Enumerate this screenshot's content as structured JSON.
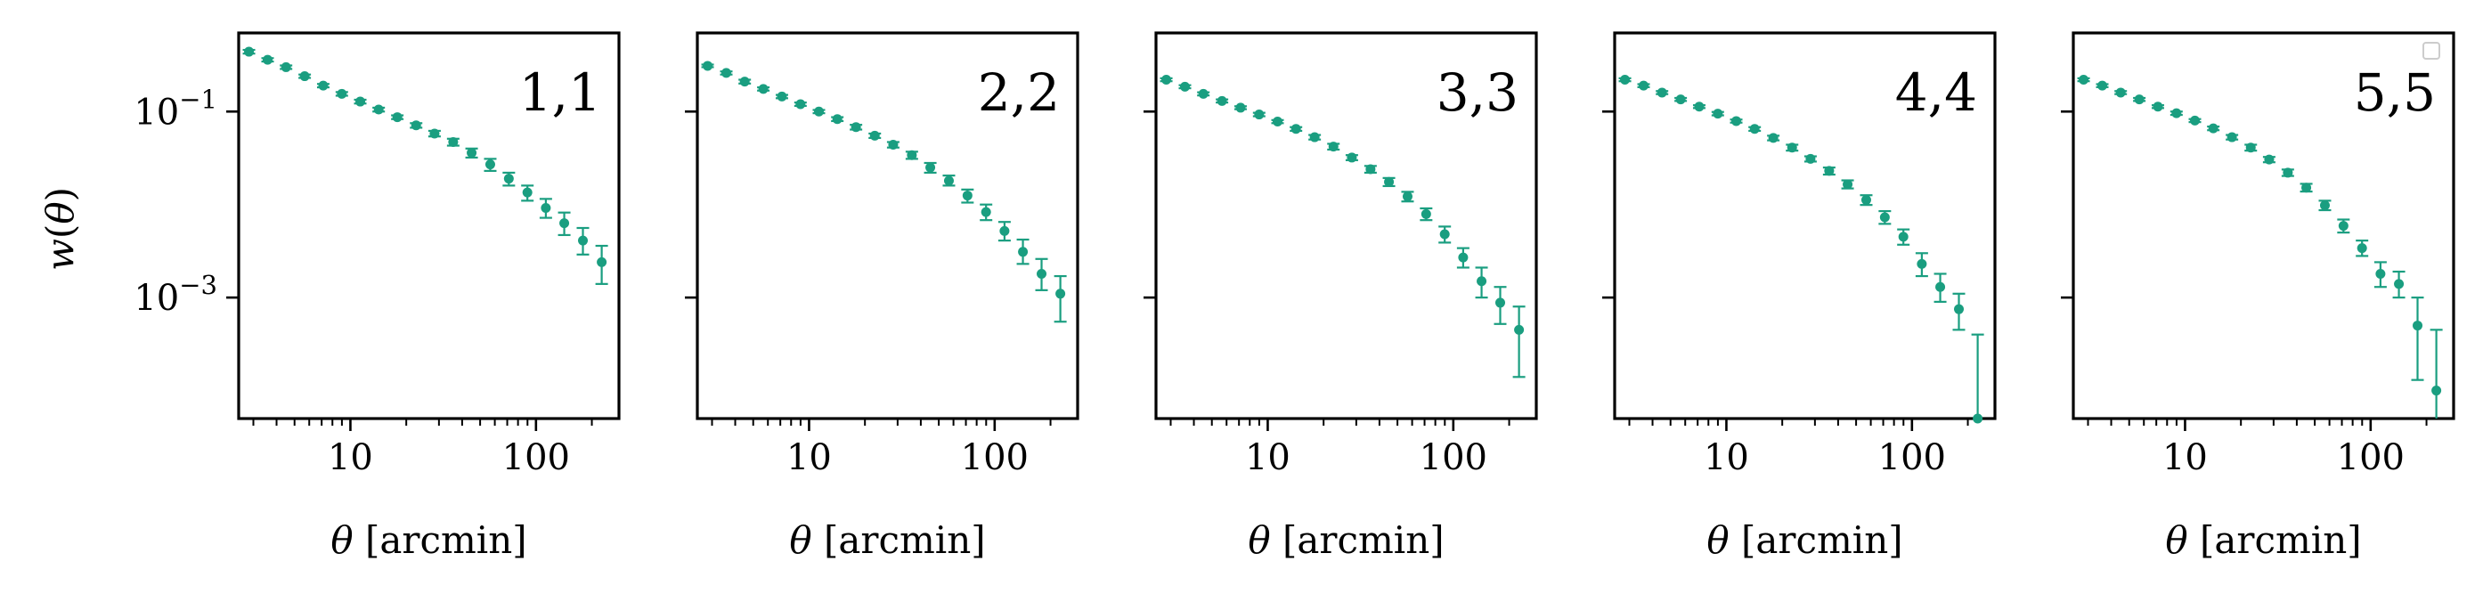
{
  "figure": {
    "ylabel": "w(θ)",
    "xlabel": "θ [arcmin]",
    "series_color": "#1a9e80"
  },
  "chart_data": [
    {
      "type": "scatter",
      "panel_label": "1,1",
      "xlabel": "θ [arcmin]",
      "ylabel": "w(θ)",
      "xscale": "log",
      "yscale": "log",
      "xlim": [
        2.5,
        280
      ],
      "ylim": [
        5e-05,
        0.7
      ],
      "xticks": [
        10,
        100
      ],
      "xticklabels": [
        "10",
        "100"
      ],
      "yticks": [
        0.1,
        0.001
      ],
      "yticklabels": [
        "10^−1",
        "10^−3"
      ],
      "points": [
        {
          "x": 2.84,
          "y": 0.44,
          "err": [
            0.42,
            0.46
          ]
        },
        {
          "x": 3.58,
          "y": 0.36,
          "err": [
            0.345,
            0.375
          ]
        },
        {
          "x": 4.5,
          "y": 0.3,
          "err": [
            0.287,
            0.313
          ]
        },
        {
          "x": 5.67,
          "y": 0.24,
          "err": [
            0.23,
            0.25
          ]
        },
        {
          "x": 7.14,
          "y": 0.19,
          "err": [
            0.182,
            0.198
          ]
        },
        {
          "x": 8.99,
          "y": 0.155,
          "err": [
            0.148,
            0.162
          ]
        },
        {
          "x": 11.3,
          "y": 0.128,
          "err": [
            0.122,
            0.134
          ]
        },
        {
          "x": 14.2,
          "y": 0.105,
          "err": [
            0.1,
            0.11
          ]
        },
        {
          "x": 17.9,
          "y": 0.087,
          "err": [
            0.083,
            0.091
          ]
        },
        {
          "x": 22.6,
          "y": 0.071,
          "err": [
            0.067,
            0.075
          ]
        },
        {
          "x": 28.4,
          "y": 0.058,
          "err": [
            0.054,
            0.062
          ]
        },
        {
          "x": 35.8,
          "y": 0.047,
          "err": [
            0.043,
            0.051
          ]
        },
        {
          "x": 45.0,
          "y": 0.036,
          "err": [
            0.032,
            0.04
          ]
        },
        {
          "x": 56.7,
          "y": 0.027,
          "err": [
            0.023,
            0.031
          ]
        },
        {
          "x": 71.4,
          "y": 0.019,
          "err": [
            0.016,
            0.022
          ]
        },
        {
          "x": 89.9,
          "y": 0.0135,
          "err": [
            0.011,
            0.016
          ]
        },
        {
          "x": 113.0,
          "y": 0.0092,
          "err": [
            0.0072,
            0.0115
          ]
        },
        {
          "x": 142.0,
          "y": 0.0063,
          "err": [
            0.0047,
            0.0082
          ]
        },
        {
          "x": 179.0,
          "y": 0.0041,
          "err": [
            0.0029,
            0.0056
          ]
        },
        {
          "x": 226.0,
          "y": 0.0024,
          "err": [
            0.0014,
            0.0036
          ]
        }
      ]
    },
    {
      "type": "scatter",
      "panel_label": "2,2",
      "xlabel": "θ [arcmin]",
      "xscale": "log",
      "yscale": "log",
      "xlim": [
        2.5,
        280
      ],
      "ylim": [
        5e-05,
        0.7
      ],
      "xticks": [
        10,
        100
      ],
      "xticklabels": [
        "10",
        "100"
      ],
      "points": [
        {
          "x": 2.84,
          "y": 0.31,
          "err": [
            0.3,
            0.32
          ]
        },
        {
          "x": 3.58,
          "y": 0.26,
          "err": [
            0.25,
            0.27
          ]
        },
        {
          "x": 4.5,
          "y": 0.21,
          "err": [
            0.2,
            0.22
          ]
        },
        {
          "x": 5.67,
          "y": 0.175,
          "err": [
            0.168,
            0.182
          ]
        },
        {
          "x": 7.14,
          "y": 0.145,
          "err": [
            0.139,
            0.151
          ]
        },
        {
          "x": 8.99,
          "y": 0.12,
          "err": [
            0.115,
            0.125
          ]
        },
        {
          "x": 11.3,
          "y": 0.1,
          "err": [
            0.096,
            0.104
          ]
        },
        {
          "x": 14.2,
          "y": 0.083,
          "err": [
            0.079,
            0.087
          ]
        },
        {
          "x": 17.9,
          "y": 0.068,
          "err": [
            0.064,
            0.072
          ]
        },
        {
          "x": 22.6,
          "y": 0.055,
          "err": [
            0.052,
            0.058
          ]
        },
        {
          "x": 28.4,
          "y": 0.044,
          "err": [
            0.041,
            0.047
          ]
        },
        {
          "x": 35.8,
          "y": 0.034,
          "err": [
            0.031,
            0.037
          ]
        },
        {
          "x": 45.0,
          "y": 0.025,
          "err": [
            0.022,
            0.028
          ]
        },
        {
          "x": 56.7,
          "y": 0.018,
          "err": [
            0.016,
            0.0205
          ]
        },
        {
          "x": 71.4,
          "y": 0.0125,
          "err": [
            0.0105,
            0.0145
          ]
        },
        {
          "x": 89.9,
          "y": 0.0083,
          "err": [
            0.0068,
            0.01
          ]
        },
        {
          "x": 113.0,
          "y": 0.0052,
          "err": [
            0.0041,
            0.0065
          ]
        },
        {
          "x": 142.0,
          "y": 0.0031,
          "err": [
            0.0023,
            0.0042
          ]
        },
        {
          "x": 179.0,
          "y": 0.0018,
          "err": [
            0.0012,
            0.0026
          ]
        },
        {
          "x": 226.0,
          "y": 0.0011,
          "err": [
            0.00055,
            0.0017
          ]
        }
      ]
    },
    {
      "type": "scatter",
      "panel_label": "3,3",
      "xlabel": "θ [arcmin]",
      "xscale": "log",
      "yscale": "log",
      "xlim": [
        2.5,
        280
      ],
      "ylim": [
        5e-05,
        0.7
      ],
      "xticks": [
        10,
        100
      ],
      "xticklabels": [
        "10",
        "100"
      ],
      "points": [
        {
          "x": 2.84,
          "y": 0.22,
          "err": [
            0.212,
            0.228
          ]
        },
        {
          "x": 3.58,
          "y": 0.185,
          "err": [
            0.178,
            0.192
          ]
        },
        {
          "x": 4.5,
          "y": 0.155,
          "err": [
            0.149,
            0.161
          ]
        },
        {
          "x": 5.67,
          "y": 0.13,
          "err": [
            0.125,
            0.135
          ]
        },
        {
          "x": 7.14,
          "y": 0.11,
          "err": [
            0.106,
            0.114
          ]
        },
        {
          "x": 8.99,
          "y": 0.093,
          "err": [
            0.089,
            0.097
          ]
        },
        {
          "x": 11.3,
          "y": 0.078,
          "err": [
            0.075,
            0.081
          ]
        },
        {
          "x": 14.2,
          "y": 0.065,
          "err": [
            0.062,
            0.068
          ]
        },
        {
          "x": 17.9,
          "y": 0.053,
          "err": [
            0.05,
            0.056
          ]
        },
        {
          "x": 22.6,
          "y": 0.042,
          "err": [
            0.039,
            0.045
          ]
        },
        {
          "x": 28.4,
          "y": 0.032,
          "err": [
            0.03,
            0.034
          ]
        },
        {
          "x": 35.8,
          "y": 0.024,
          "err": [
            0.022,
            0.026
          ]
        },
        {
          "x": 45.0,
          "y": 0.0175,
          "err": [
            0.0158,
            0.0193
          ]
        },
        {
          "x": 56.7,
          "y": 0.0122,
          "err": [
            0.0108,
            0.0137
          ]
        },
        {
          "x": 71.4,
          "y": 0.0079,
          "err": [
            0.0068,
            0.0091
          ]
        },
        {
          "x": 89.9,
          "y": 0.0048,
          "err": [
            0.0039,
            0.0058
          ]
        },
        {
          "x": 113.0,
          "y": 0.0027,
          "err": [
            0.0021,
            0.0034
          ]
        },
        {
          "x": 142.0,
          "y": 0.0015,
          "err": [
            0.001,
            0.0021
          ]
        },
        {
          "x": 179.0,
          "y": 0.00088,
          "err": [
            0.00052,
            0.0013
          ]
        },
        {
          "x": 226.0,
          "y": 0.00045,
          "err": [
            0.00014,
            0.0008
          ]
        }
      ]
    },
    {
      "type": "scatter",
      "panel_label": "4,4",
      "xlabel": "θ [arcmin]",
      "xscale": "log",
      "yscale": "log",
      "xlim": [
        2.5,
        280
      ],
      "ylim": [
        5e-05,
        0.7
      ],
      "xticks": [
        10,
        100
      ],
      "xticklabels": [
        "10",
        "100"
      ],
      "points": [
        {
          "x": 2.84,
          "y": 0.22,
          "err": [
            0.212,
            0.228
          ]
        },
        {
          "x": 3.58,
          "y": 0.19,
          "err": [
            0.183,
            0.197
          ]
        },
        {
          "x": 4.5,
          "y": 0.16,
          "err": [
            0.154,
            0.166
          ]
        },
        {
          "x": 5.67,
          "y": 0.135,
          "err": [
            0.13,
            0.14
          ]
        },
        {
          "x": 7.14,
          "y": 0.113,
          "err": [
            0.109,
            0.117
          ]
        },
        {
          "x": 8.99,
          "y": 0.095,
          "err": [
            0.091,
            0.099
          ]
        },
        {
          "x": 11.3,
          "y": 0.079,
          "err": [
            0.076,
            0.082
          ]
        },
        {
          "x": 14.2,
          "y": 0.065,
          "err": [
            0.062,
            0.068
          ]
        },
        {
          "x": 17.9,
          "y": 0.052,
          "err": [
            0.049,
            0.055
          ]
        },
        {
          "x": 22.6,
          "y": 0.041,
          "err": [
            0.038,
            0.044
          ]
        },
        {
          "x": 28.4,
          "y": 0.031,
          "err": [
            0.029,
            0.033
          ]
        },
        {
          "x": 35.8,
          "y": 0.023,
          "err": [
            0.021,
            0.025
          ]
        },
        {
          "x": 45.0,
          "y": 0.0165,
          "err": [
            0.0149,
            0.0182
          ]
        },
        {
          "x": 56.7,
          "y": 0.0112,
          "err": [
            0.0099,
            0.0126
          ]
        },
        {
          "x": 71.4,
          "y": 0.0073,
          "err": [
            0.0062,
            0.0085
          ]
        },
        {
          "x": 89.9,
          "y": 0.0045,
          "err": [
            0.0037,
            0.0054
          ]
        },
        {
          "x": 113.0,
          "y": 0.0023,
          "err": [
            0.0017,
            0.003
          ]
        },
        {
          "x": 142.0,
          "y": 0.0013,
          "err": [
            0.0009,
            0.0018
          ]
        },
        {
          "x": 179.0,
          "y": 0.00075,
          "err": [
            0.00045,
            0.0011
          ]
        },
        {
          "x": 226.0,
          "y": 5e-05,
          "err": [
            1e-05,
            0.0004
          ]
        }
      ]
    },
    {
      "type": "scatter",
      "panel_label": "5,5",
      "xlabel": "θ [arcmin]",
      "xscale": "log",
      "yscale": "log",
      "xlim": [
        2.5,
        280
      ],
      "ylim": [
        5e-05,
        0.7
      ],
      "xticks": [
        10,
        100
      ],
      "xticklabels": [
        "10",
        "100"
      ],
      "legend": "top-right",
      "points": [
        {
          "x": 2.84,
          "y": 0.22,
          "err": [
            0.212,
            0.228
          ]
        },
        {
          "x": 3.58,
          "y": 0.19,
          "err": [
            0.183,
            0.197
          ]
        },
        {
          "x": 4.5,
          "y": 0.16,
          "err": [
            0.154,
            0.166
          ]
        },
        {
          "x": 5.67,
          "y": 0.135,
          "err": [
            0.13,
            0.14
          ]
        },
        {
          "x": 7.14,
          "y": 0.113,
          "err": [
            0.109,
            0.117
          ]
        },
        {
          "x": 8.99,
          "y": 0.096,
          "err": [
            0.092,
            0.1
          ]
        },
        {
          "x": 11.3,
          "y": 0.08,
          "err": [
            0.077,
            0.083
          ]
        },
        {
          "x": 14.2,
          "y": 0.066,
          "err": [
            0.063,
            0.069
          ]
        },
        {
          "x": 17.9,
          "y": 0.053,
          "err": [
            0.05,
            0.056
          ]
        },
        {
          "x": 22.6,
          "y": 0.041,
          "err": [
            0.038,
            0.044
          ]
        },
        {
          "x": 28.4,
          "y": 0.0305,
          "err": [
            0.0285,
            0.0325
          ]
        },
        {
          "x": 35.8,
          "y": 0.022,
          "err": [
            0.0203,
            0.0238
          ]
        },
        {
          "x": 45.0,
          "y": 0.0152,
          "err": [
            0.0138,
            0.0167
          ]
        },
        {
          "x": 56.7,
          "y": 0.0098,
          "err": [
            0.0087,
            0.011
          ]
        },
        {
          "x": 71.4,
          "y": 0.0059,
          "err": [
            0.005,
            0.0069
          ]
        },
        {
          "x": 89.9,
          "y": 0.0034,
          "err": [
            0.0028,
            0.0041
          ]
        },
        {
          "x": 113.0,
          "y": 0.0018,
          "err": [
            0.0013,
            0.0024
          ]
        },
        {
          "x": 142.0,
          "y": 0.0014,
          "err": [
            0.001,
            0.0019
          ]
        },
        {
          "x": 179.0,
          "y": 0.0005,
          "err": [
            0.00013,
            0.001
          ]
        },
        {
          "x": 226.0,
          "y": 0.0001,
          "err": [
            3e-05,
            0.00045
          ]
        }
      ]
    }
  ]
}
